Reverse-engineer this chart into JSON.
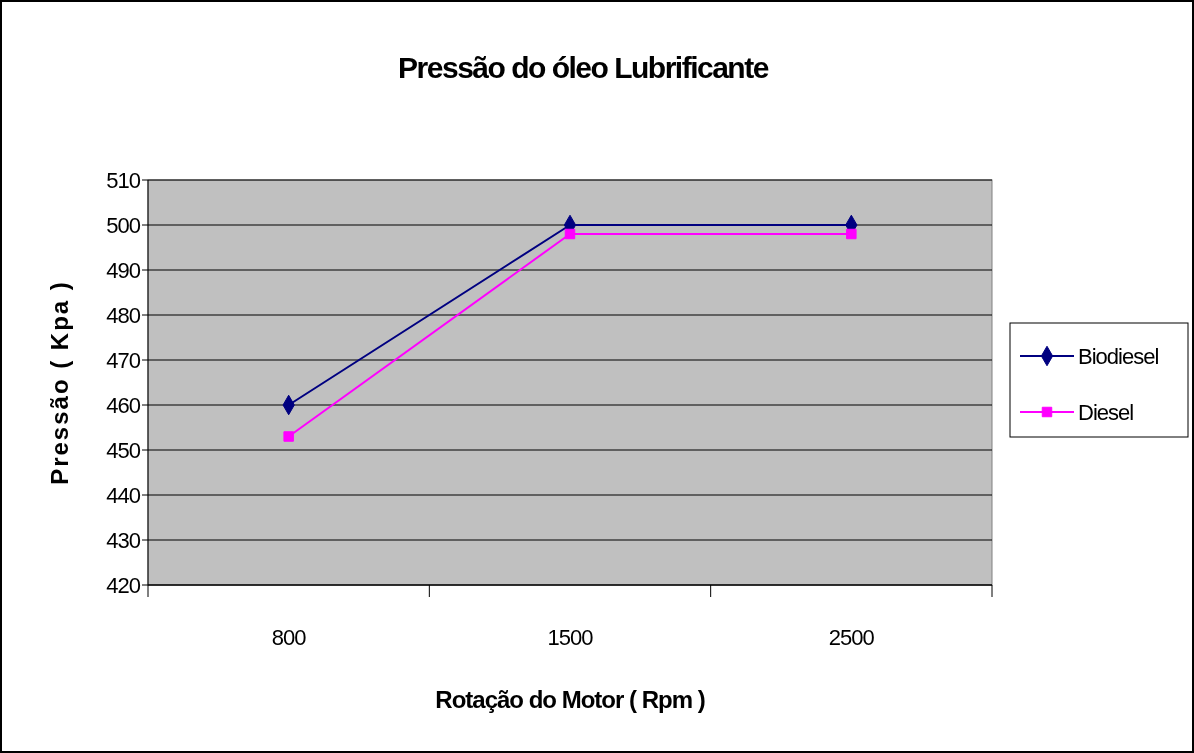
{
  "chart_data": {
    "type": "line",
    "title": "Pressão do óleo Lubrificante",
    "xlabel": "Rotação do Motor ( Rpm )",
    "ylabel": "Pressão ( Kpa )",
    "categories": [
      "800",
      "1500",
      "2500"
    ],
    "series": [
      {
        "name": "Biodiesel",
        "color": "#000080",
        "marker": "diamond",
        "values": [
          460,
          500,
          500
        ]
      },
      {
        "name": "Diesel",
        "color": "#ff00ff",
        "marker": "square",
        "values": [
          453,
          498,
          498
        ]
      }
    ],
    "ylim": [
      420,
      510
    ],
    "yticks": [
      420,
      430,
      440,
      450,
      460,
      470,
      480,
      490,
      500,
      510
    ],
    "grid": "y",
    "legend": "right",
    "line_style": "solid"
  }
}
